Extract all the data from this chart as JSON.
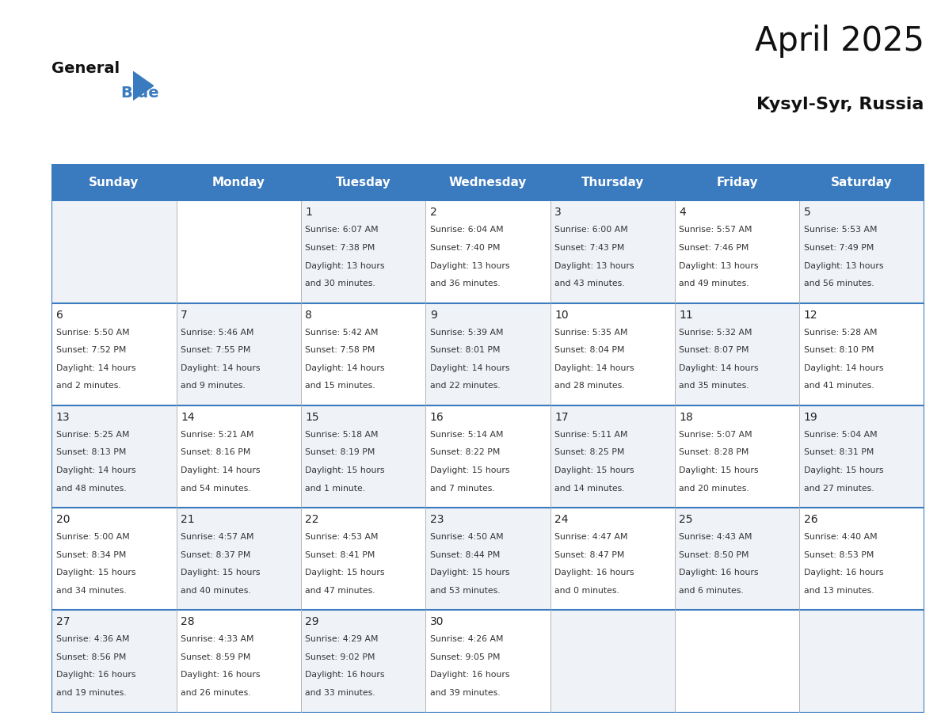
{
  "title": "April 2025",
  "subtitle": "Kysyl-Syr, Russia",
  "header_color": "#3a7abf",
  "header_text_color": "#ffffff",
  "border_color": "#3a7abf",
  "cell_line_color": "#aaaaaa",
  "day_names": [
    "Sunday",
    "Monday",
    "Tuesday",
    "Wednesday",
    "Thursday",
    "Friday",
    "Saturday"
  ],
  "days": [
    {
      "day": 1,
      "col": 2,
      "row": 0,
      "sunrise": "6:07 AM",
      "sunset": "7:38 PM",
      "daylight": "13 hours and 30 minutes."
    },
    {
      "day": 2,
      "col": 3,
      "row": 0,
      "sunrise": "6:04 AM",
      "sunset": "7:40 PM",
      "daylight": "13 hours and 36 minutes."
    },
    {
      "day": 3,
      "col": 4,
      "row": 0,
      "sunrise": "6:00 AM",
      "sunset": "7:43 PM",
      "daylight": "13 hours and 43 minutes."
    },
    {
      "day": 4,
      "col": 5,
      "row": 0,
      "sunrise": "5:57 AM",
      "sunset": "7:46 PM",
      "daylight": "13 hours and 49 minutes."
    },
    {
      "day": 5,
      "col": 6,
      "row": 0,
      "sunrise": "5:53 AM",
      "sunset": "7:49 PM",
      "daylight": "13 hours and 56 minutes."
    },
    {
      "day": 6,
      "col": 0,
      "row": 1,
      "sunrise": "5:50 AM",
      "sunset": "7:52 PM",
      "daylight": "14 hours and 2 minutes."
    },
    {
      "day": 7,
      "col": 1,
      "row": 1,
      "sunrise": "5:46 AM",
      "sunset": "7:55 PM",
      "daylight": "14 hours and 9 minutes."
    },
    {
      "day": 8,
      "col": 2,
      "row": 1,
      "sunrise": "5:42 AM",
      "sunset": "7:58 PM",
      "daylight": "14 hours and 15 minutes."
    },
    {
      "day": 9,
      "col": 3,
      "row": 1,
      "sunrise": "5:39 AM",
      "sunset": "8:01 PM",
      "daylight": "14 hours and 22 minutes."
    },
    {
      "day": 10,
      "col": 4,
      "row": 1,
      "sunrise": "5:35 AM",
      "sunset": "8:04 PM",
      "daylight": "14 hours and 28 minutes."
    },
    {
      "day": 11,
      "col": 5,
      "row": 1,
      "sunrise": "5:32 AM",
      "sunset": "8:07 PM",
      "daylight": "14 hours and 35 minutes."
    },
    {
      "day": 12,
      "col": 6,
      "row": 1,
      "sunrise": "5:28 AM",
      "sunset": "8:10 PM",
      "daylight": "14 hours and 41 minutes."
    },
    {
      "day": 13,
      "col": 0,
      "row": 2,
      "sunrise": "5:25 AM",
      "sunset": "8:13 PM",
      "daylight": "14 hours and 48 minutes."
    },
    {
      "day": 14,
      "col": 1,
      "row": 2,
      "sunrise": "5:21 AM",
      "sunset": "8:16 PM",
      "daylight": "14 hours and 54 minutes."
    },
    {
      "day": 15,
      "col": 2,
      "row": 2,
      "sunrise": "5:18 AM",
      "sunset": "8:19 PM",
      "daylight": "15 hours and 1 minute."
    },
    {
      "day": 16,
      "col": 3,
      "row": 2,
      "sunrise": "5:14 AM",
      "sunset": "8:22 PM",
      "daylight": "15 hours and 7 minutes."
    },
    {
      "day": 17,
      "col": 4,
      "row": 2,
      "sunrise": "5:11 AM",
      "sunset": "8:25 PM",
      "daylight": "15 hours and 14 minutes."
    },
    {
      "day": 18,
      "col": 5,
      "row": 2,
      "sunrise": "5:07 AM",
      "sunset": "8:28 PM",
      "daylight": "15 hours and 20 minutes."
    },
    {
      "day": 19,
      "col": 6,
      "row": 2,
      "sunrise": "5:04 AM",
      "sunset": "8:31 PM",
      "daylight": "15 hours and 27 minutes."
    },
    {
      "day": 20,
      "col": 0,
      "row": 3,
      "sunrise": "5:00 AM",
      "sunset": "8:34 PM",
      "daylight": "15 hours and 34 minutes."
    },
    {
      "day": 21,
      "col": 1,
      "row": 3,
      "sunrise": "4:57 AM",
      "sunset": "8:37 PM",
      "daylight": "15 hours and 40 minutes."
    },
    {
      "day": 22,
      "col": 2,
      "row": 3,
      "sunrise": "4:53 AM",
      "sunset": "8:41 PM",
      "daylight": "15 hours and 47 minutes."
    },
    {
      "day": 23,
      "col": 3,
      "row": 3,
      "sunrise": "4:50 AM",
      "sunset": "8:44 PM",
      "daylight": "15 hours and 53 minutes."
    },
    {
      "day": 24,
      "col": 4,
      "row": 3,
      "sunrise": "4:47 AM",
      "sunset": "8:47 PM",
      "daylight": "16 hours and 0 minutes."
    },
    {
      "day": 25,
      "col": 5,
      "row": 3,
      "sunrise": "4:43 AM",
      "sunset": "8:50 PM",
      "daylight": "16 hours and 6 minutes."
    },
    {
      "day": 26,
      "col": 6,
      "row": 3,
      "sunrise": "4:40 AM",
      "sunset": "8:53 PM",
      "daylight": "16 hours and 13 minutes."
    },
    {
      "day": 27,
      "col": 0,
      "row": 4,
      "sunrise": "4:36 AM",
      "sunset": "8:56 PM",
      "daylight": "16 hours and 19 minutes."
    },
    {
      "day": 28,
      "col": 1,
      "row": 4,
      "sunrise": "4:33 AM",
      "sunset": "8:59 PM",
      "daylight": "16 hours and 26 minutes."
    },
    {
      "day": 29,
      "col": 2,
      "row": 4,
      "sunrise": "4:29 AM",
      "sunset": "9:02 PM",
      "daylight": "16 hours and 33 minutes."
    },
    {
      "day": 30,
      "col": 3,
      "row": 4,
      "sunrise": "4:26 AM",
      "sunset": "9:05 PM",
      "daylight": "16 hours and 39 minutes."
    }
  ]
}
